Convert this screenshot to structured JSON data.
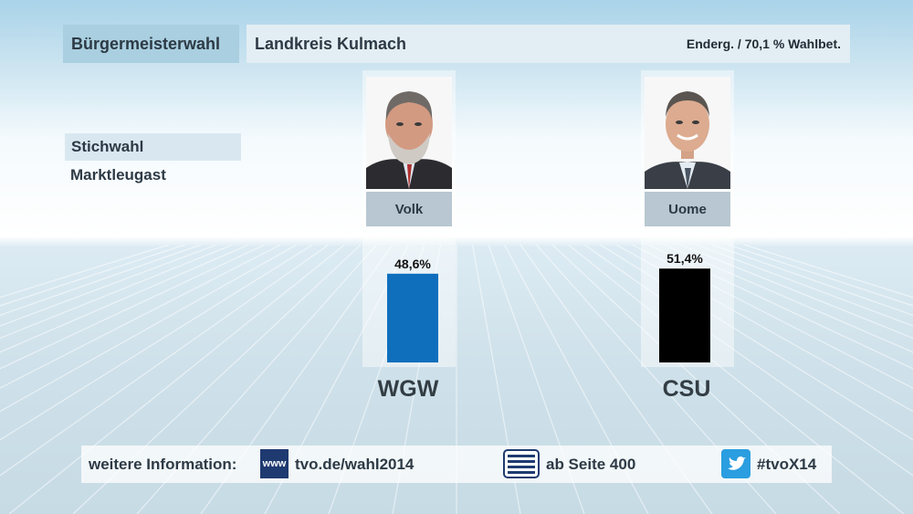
{
  "header": {
    "title": "Bürgermeisterwahl",
    "region": "Landkreis Kulmach",
    "status": "Enderg. / 70,1 % Wahlbet."
  },
  "subheader": {
    "round": "Stichwahl",
    "municipality": "Marktleugast"
  },
  "chart_data": {
    "type": "bar",
    "title": "Bürgermeisterwahl",
    "categories": [
      "Volk",
      "Uome"
    ],
    "parties": [
      "WGW",
      "CSU"
    ],
    "values": [
      48.6,
      51.4
    ],
    "value_labels": [
      "48,6%",
      "51,4%"
    ],
    "colors": [
      "#0f6fbd",
      "#000000"
    ],
    "ylim": [
      0,
      100
    ],
    "grid": false
  },
  "candidates": [
    {
      "name": "Volk",
      "party": "WGW",
      "value_label": "48,6%",
      "color": "#0f6fbd"
    },
    {
      "name": "Uome",
      "party": "CSU",
      "value_label": "51,4%",
      "color": "#000000"
    }
  ],
  "footer": {
    "info_label": "weitere Information:",
    "www_icon_text": "www",
    "web_url": "tvo.de/wahl2014",
    "teletext": "ab Seite 400",
    "hashtag": "#tvoX14",
    "icons": [
      "www-icon",
      "teletext-icon",
      "twitter-icon"
    ]
  }
}
